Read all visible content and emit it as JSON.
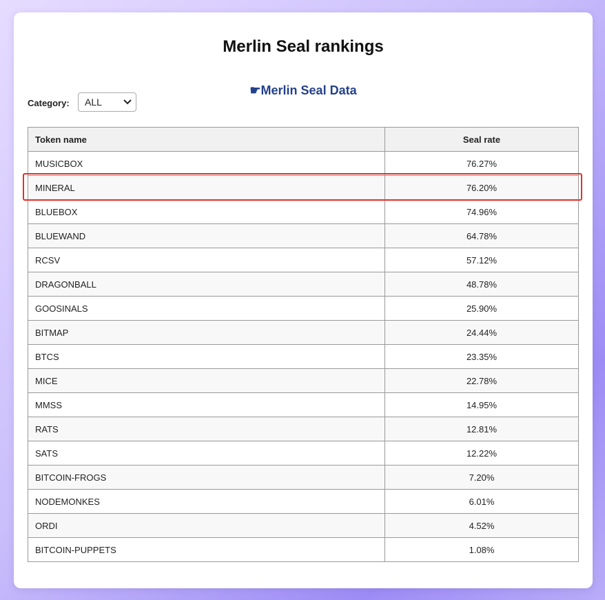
{
  "header": {
    "title": "Merlin Seal rankings",
    "link": "☛Merlin Seal Data"
  },
  "filter": {
    "label": "Category:",
    "selected": "ALL"
  },
  "table": {
    "headers": [
      "Token name",
      "Seal rate"
    ],
    "rows": [
      [
        "MUSICBOX",
        "76.27%"
      ],
      [
        "MINERAL",
        "76.20%"
      ],
      [
        "BLUEBOX",
        "74.96%"
      ],
      [
        "BLUEWAND",
        "64.78%"
      ],
      [
        "RCSV",
        "57.12%"
      ],
      [
        "DRAGONBALL",
        "48.78%"
      ],
      [
        "GOOSINALS",
        "25.90%"
      ],
      [
        "BITMAP",
        "24.44%"
      ],
      [
        "BTCS",
        "23.35%"
      ],
      [
        "MICE",
        "22.78%"
      ],
      [
        "MMSS",
        "14.95%"
      ],
      [
        "RATS",
        "12.81%"
      ],
      [
        "SATS",
        "12.22%"
      ],
      [
        "BITCOIN-FROGS",
        "7.20%"
      ],
      [
        "NODEMONKES",
        "6.01%"
      ],
      [
        "ORDI",
        "4.52%"
      ],
      [
        "BITCOIN-PUPPETS",
        "1.08%"
      ]
    ]
  }
}
